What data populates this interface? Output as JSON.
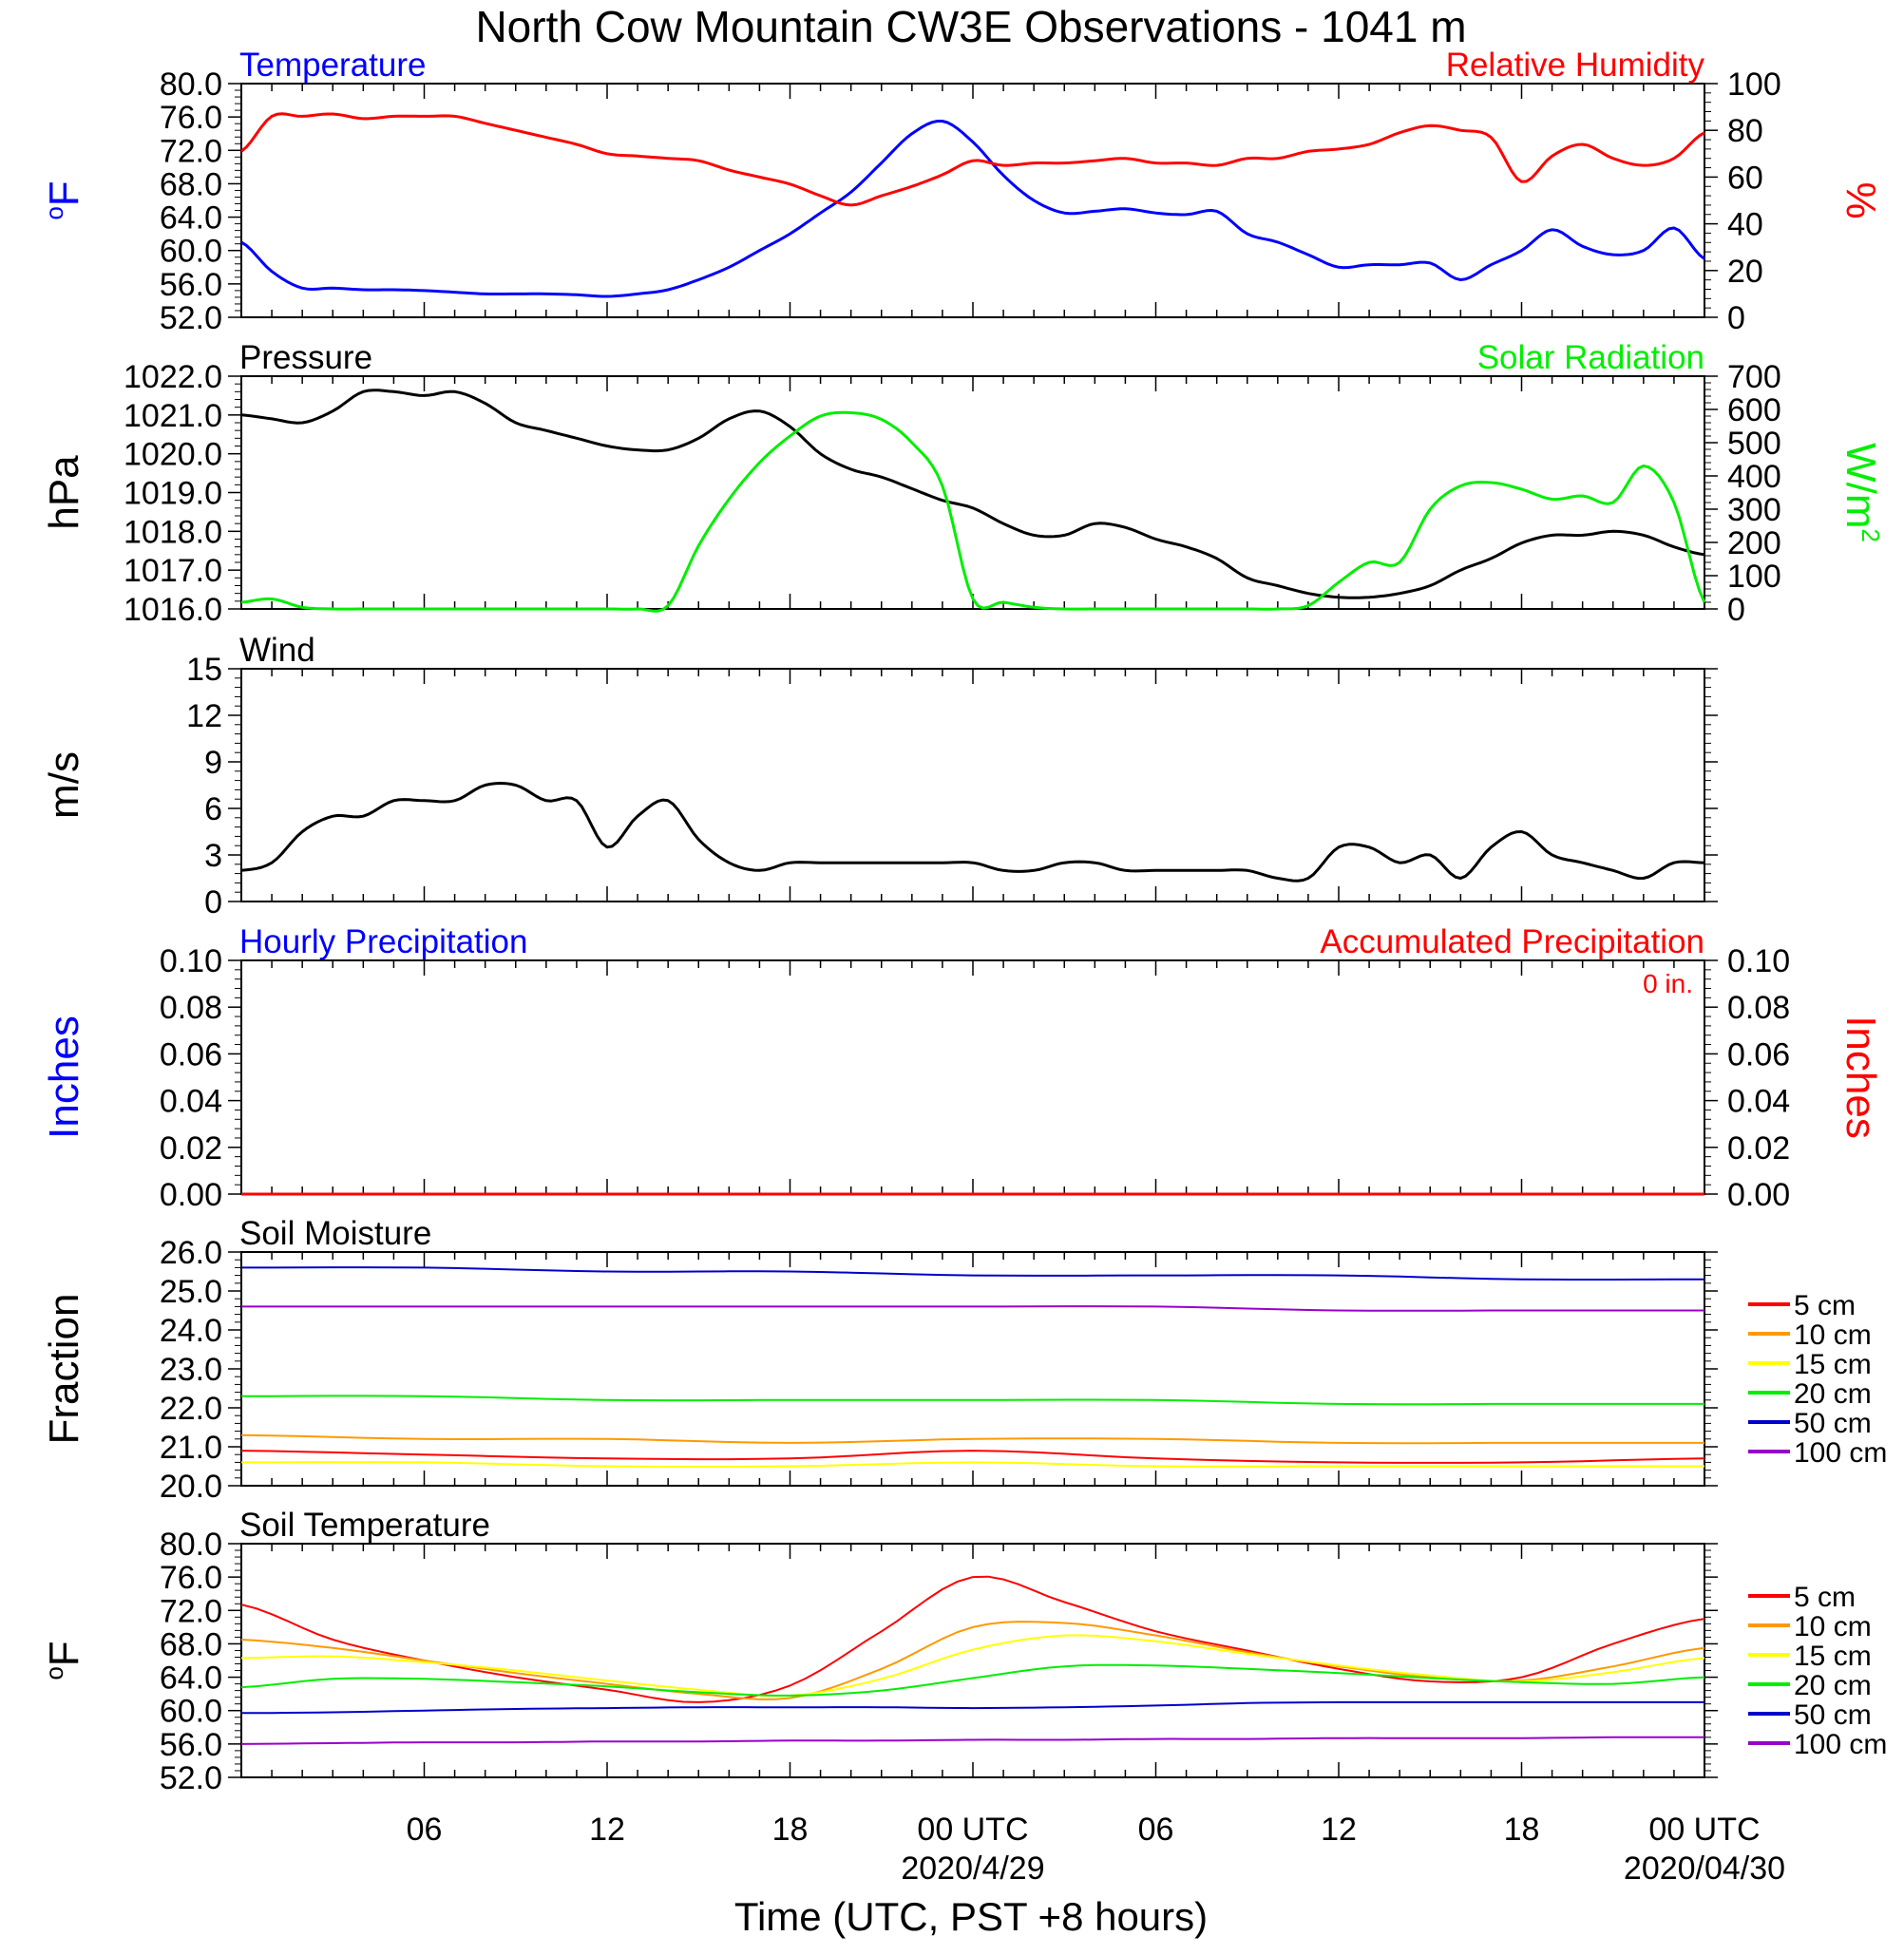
{
  "title": "North Cow Mountain CW3E Observations - 1041 m",
  "xlabel": "Time (UTC, PST +8 hours)",
  "x_ticks": [
    "06",
    "12",
    "18",
    "00 UTC",
    "06",
    "12",
    "18",
    "00 UTC"
  ],
  "x_dates": [
    "2020/4/29",
    "2020/04/30"
  ],
  "colors": {
    "blue": "#0000ff",
    "red": "#ff0000",
    "green": "#00ee00",
    "black": "#000000",
    "orange": "#ff9900",
    "yellow": "#ffff00",
    "darkblue": "#0000cc",
    "purple": "#9900cc"
  },
  "chart_data": [
    {
      "type": "line",
      "panel": "temperature-humidity",
      "title_left": "Temperature",
      "title_right": "Relative Humidity",
      "ylabel": "oF",
      "ylabel_right": "%",
      "ylim": [
        52,
        80
      ],
      "ylim_right": [
        0,
        100
      ],
      "yticks": [
        "80.0",
        "76.0",
        "72.0",
        "68.0",
        "64.0",
        "60.0",
        "56.0",
        "52.0"
      ],
      "yticks_right": [
        "100",
        "80",
        "60",
        "40",
        "20",
        "0"
      ],
      "x_hours": [
        0,
        1,
        2,
        3,
        4,
        5,
        6,
        7,
        8,
        9,
        10,
        11,
        12,
        13,
        14,
        15,
        16,
        17,
        18,
        19,
        20,
        21,
        22,
        23,
        24,
        25,
        26,
        27,
        28,
        29,
        30,
        31,
        32,
        33,
        34,
        35,
        36,
        37,
        38,
        39,
        40,
        41,
        42,
        43,
        44,
        45,
        46,
        47,
        48
      ],
      "series": [
        {
          "name": "Temperature",
          "color": "#0000ff",
          "axis": "left",
          "values": [
            61,
            57.5,
            55.5,
            55.5,
            55.3,
            55.3,
            55.2,
            55,
            54.8,
            54.8,
            54.8,
            54.7,
            54.5,
            54.8,
            55.3,
            56.5,
            58,
            60,
            62,
            64.5,
            67,
            70.5,
            74,
            75.5,
            73,
            69,
            66,
            64.5,
            64.7,
            65,
            64.5,
            64.3,
            64.7,
            62,
            61,
            59.5,
            58,
            58.3,
            58.3,
            58.5,
            56.5,
            58.3,
            60,
            62.5,
            60.5,
            59.5,
            60,
            62.7,
            59
          ]
        },
        {
          "name": "Relative Humidity",
          "color": "#ff0000",
          "axis": "right",
          "values": [
            71,
            86,
            86,
            87,
            85,
            86,
            86,
            86,
            83,
            80,
            77,
            74,
            70,
            69,
            68,
            67,
            63,
            60,
            57,
            52,
            48,
            52,
            56,
            61,
            67,
            65,
            66,
            66,
            67,
            68,
            66,
            66,
            65,
            68,
            68,
            71,
            72,
            74,
            79,
            82,
            80,
            77,
            58,
            69,
            74,
            68,
            65,
            68,
            79
          ]
        }
      ]
    },
    {
      "type": "line",
      "panel": "pressure-solar",
      "title_left": "Pressure",
      "title_right": "Solar Radiation",
      "ylabel": "hPa",
      "ylabel_right": "W/m2",
      "ylim": [
        1016,
        1022
      ],
      "ylim_right": [
        0,
        700
      ],
      "yticks": [
        "1022.0",
        "1021.0",
        "1020.0",
        "1019.0",
        "1018.0",
        "1017.0",
        "1016.0"
      ],
      "yticks_right": [
        "700",
        "600",
        "500",
        "400",
        "300",
        "200",
        "100",
        "0"
      ],
      "x_hours": [
        0,
        1,
        2,
        3,
        4,
        5,
        6,
        7,
        8,
        9,
        10,
        11,
        12,
        13,
        14,
        15,
        16,
        17,
        18,
        19,
        20,
        21,
        22,
        23,
        24,
        25,
        26,
        27,
        28,
        29,
        30,
        31,
        32,
        33,
        34,
        35,
        36,
        37,
        38,
        39,
        40,
        41,
        42,
        43,
        44,
        45,
        46,
        47,
        48
      ],
      "series": [
        {
          "name": "Pressure",
          "color": "#000000",
          "axis": "left",
          "values": [
            1021,
            1020.9,
            1020.8,
            1021.1,
            1021.6,
            1021.6,
            1021.5,
            1021.6,
            1021.3,
            1020.8,
            1020.6,
            1020.4,
            1020.2,
            1020.1,
            1020.1,
            1020.4,
            1020.9,
            1021.1,
            1020.7,
            1020,
            1019.6,
            1019.4,
            1019.1,
            1018.8,
            1018.6,
            1018.2,
            1017.9,
            1017.9,
            1018.2,
            1018.1,
            1017.8,
            1017.6,
            1017.3,
            1016.8,
            1016.6,
            1016.4,
            1016.3,
            1016.3,
            1016.4,
            1016.6,
            1017,
            1017.3,
            1017.7,
            1017.9,
            1017.9,
            1018,
            1017.9,
            1017.6,
            1017.4
          ]
        },
        {
          "name": "Solar Radiation",
          "color": "#00ee00",
          "axis": "right",
          "values": [
            20,
            30,
            5,
            0,
            0,
            0,
            0,
            0,
            0,
            0,
            0,
            0,
            0,
            0,
            10,
            190,
            330,
            440,
            520,
            580,
            590,
            570,
            500,
            370,
            30,
            20,
            5,
            0,
            0,
            0,
            0,
            0,
            0,
            0,
            0,
            10,
            80,
            140,
            140,
            300,
            370,
            380,
            360,
            330,
            340,
            320,
            430,
            320,
            20
          ]
        }
      ]
    },
    {
      "type": "line",
      "panel": "wind",
      "title_left": "Wind",
      "ylabel": "m/s",
      "ylim": [
        0,
        15
      ],
      "yticks": [
        "15",
        "12",
        "9",
        "6",
        "3",
        "0"
      ],
      "x_hours": [
        0,
        1,
        2,
        3,
        4,
        5,
        6,
        7,
        8,
        9,
        10,
        11,
        12,
        13,
        14,
        15,
        16,
        17,
        18,
        19,
        20,
        21,
        22,
        23,
        24,
        25,
        26,
        27,
        28,
        29,
        30,
        31,
        32,
        33,
        34,
        35,
        36,
        37,
        38,
        39,
        40,
        41,
        42,
        43,
        44,
        45,
        46,
        47,
        48
      ],
      "series": [
        {
          "name": "Wind speed",
          "color": "#000000",
          "values": [
            2,
            2.5,
            4.5,
            5.5,
            5.5,
            6.5,
            6.5,
            6.5,
            7.5,
            7.5,
            6.5,
            6.5,
            3.5,
            5.5,
            6.5,
            4,
            2.5,
            2,
            2.5,
            2.5,
            2.5,
            2.5,
            2.5,
            2.5,
            2.5,
            2,
            2,
            2.5,
            2.5,
            2,
            2,
            2,
            2,
            2,
            1.5,
            1.5,
            3.5,
            3.5,
            2.5,
            3,
            1.5,
            3.5,
            4.5,
            3,
            2.5,
            2,
            1.5,
            2.5,
            2.5
          ]
        }
      ]
    },
    {
      "type": "line",
      "panel": "precipitation",
      "title_left": "Hourly Precipitation",
      "title_right": "Accumulated Precipitation",
      "annotation": "0 in.",
      "ylabel": "Inches",
      "ylabel_right": "Inches",
      "ylim": [
        0,
        0.1
      ],
      "yticks": [
        "0.10",
        "0.08",
        "0.06",
        "0.04",
        "0.02",
        "0.00"
      ],
      "yticks_right": [
        "0.10",
        "0.08",
        "0.06",
        "0.04",
        "0.02",
        "0.00"
      ],
      "x_hours": [
        0,
        48
      ],
      "series": [
        {
          "name": "Hourly Precipitation",
          "color": "#0000ff",
          "values": [
            0,
            0
          ]
        },
        {
          "name": "Accumulated Precipitation",
          "color": "#ff0000",
          "values": [
            0,
            0
          ]
        }
      ]
    },
    {
      "type": "line",
      "panel": "soil-moisture",
      "title_left": "Soil Moisture",
      "ylabel": "Fraction",
      "ylim": [
        20,
        26
      ],
      "yticks": [
        "26.0",
        "25.0",
        "24.0",
        "23.0",
        "22.0",
        "21.0",
        "20.0"
      ],
      "x_hours": [
        0,
        6,
        12,
        18,
        24,
        30,
        36,
        42,
        48
      ],
      "series": [
        {
          "name": "5 cm",
          "color": "#ff0000",
          "values": [
            20.9,
            20.8,
            20.7,
            20.7,
            20.9,
            20.7,
            20.6,
            20.6,
            20.7
          ]
        },
        {
          "name": "10 cm",
          "color": "#ff9900",
          "values": [
            21.3,
            21.2,
            21.2,
            21.1,
            21.2,
            21.2,
            21.1,
            21.1,
            21.1
          ]
        },
        {
          "name": "15 cm",
          "color": "#ffff00",
          "values": [
            20.6,
            20.6,
            20.5,
            20.5,
            20.6,
            20.5,
            20.5,
            20.5,
            20.5
          ]
        },
        {
          "name": "20 cm",
          "color": "#00ee00",
          "values": [
            22.3,
            22.3,
            22.2,
            22.2,
            22.2,
            22.2,
            22.1,
            22.1,
            22.1
          ]
        },
        {
          "name": "50 cm",
          "color": "#0000cc",
          "values": [
            25.6,
            25.6,
            25.5,
            25.5,
            25.4,
            25.4,
            25.4,
            25.3,
            25.3
          ]
        },
        {
          "name": "100 cm",
          "color": "#9900cc",
          "values": [
            24.6,
            24.6,
            24.6,
            24.6,
            24.6,
            24.6,
            24.5,
            24.5,
            24.5
          ]
        }
      ]
    },
    {
      "type": "line",
      "panel": "soil-temperature",
      "title_left": "Soil Temperature",
      "ylabel": "oF",
      "ylim": [
        52,
        80
      ],
      "yticks": [
        "80.0",
        "76.0",
        "72.0",
        "68.0",
        "64.0",
        "60.0",
        "56.0",
        "52.0"
      ],
      "x_hours": [
        0,
        3,
        6,
        9,
        12,
        15,
        18,
        21,
        24,
        27,
        30,
        33,
        36,
        39,
        42,
        45,
        48
      ],
      "series": [
        {
          "name": "5 cm",
          "color": "#ff0000",
          "values": [
            72.7,
            68.5,
            66,
            64,
            62.5,
            61,
            63,
            69.5,
            76,
            73,
            69.5,
            67.2,
            65,
            63.5,
            64,
            68,
            71
          ]
        },
        {
          "name": "10 cm",
          "color": "#ff9900",
          "values": [
            68.5,
            67.5,
            66,
            64.5,
            63.2,
            62,
            61.5,
            65,
            70,
            70.5,
            69,
            67,
            65.3,
            64,
            63.6,
            65.3,
            67.5
          ]
        },
        {
          "name": "15 cm",
          "color": "#ffff00",
          "values": [
            66.3,
            66.5,
            65.8,
            64.8,
            63.6,
            62.5,
            61.8,
            63.8,
            67.3,
            69,
            68.3,
            66.8,
            65.4,
            64.2,
            63.5,
            64.6,
            66.3
          ]
        },
        {
          "name": "20 cm",
          "color": "#00ee00",
          "values": [
            62.8,
            63.8,
            63.8,
            63.4,
            62.9,
            62.2,
            61.8,
            62.4,
            63.9,
            65.3,
            65.4,
            65,
            64.5,
            63.9,
            63.4,
            63.2,
            64
          ]
        },
        {
          "name": "50 cm",
          "color": "#0000cc",
          "values": [
            59.7,
            59.8,
            60,
            60.2,
            60.3,
            60.4,
            60.4,
            60.4,
            60.3,
            60.4,
            60.6,
            60.9,
            61,
            61,
            61,
            61,
            61
          ]
        },
        {
          "name": "100 cm",
          "color": "#9900cc",
          "values": [
            56,
            56.1,
            56.2,
            56.2,
            56.3,
            56.3,
            56.4,
            56.4,
            56.5,
            56.5,
            56.6,
            56.6,
            56.7,
            56.7,
            56.7,
            56.8,
            56.8
          ]
        }
      ]
    }
  ]
}
